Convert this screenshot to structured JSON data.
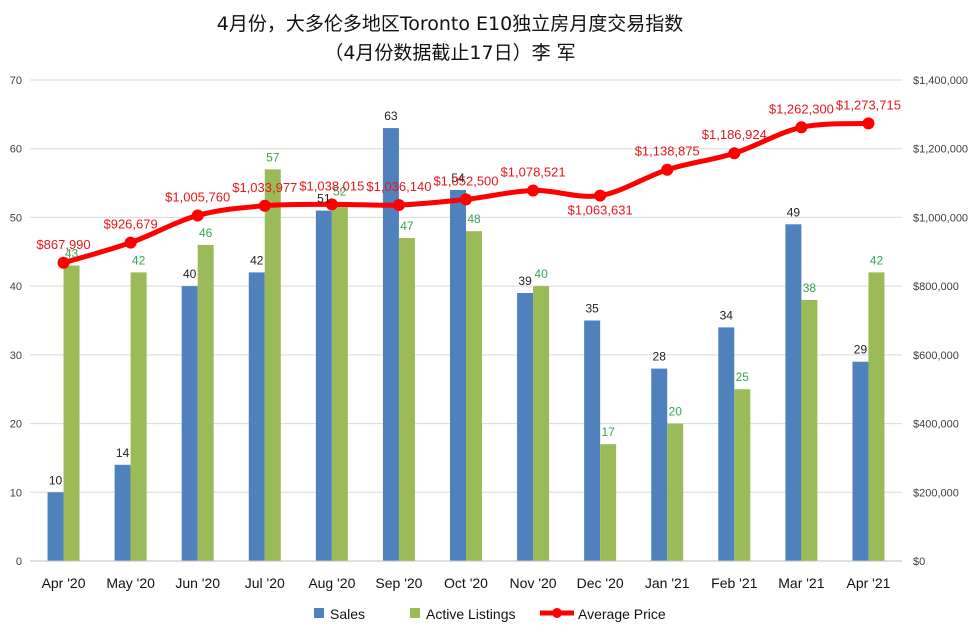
{
  "chart_data": {
    "type": "bar",
    "title": "4月份，大多伦多地区Toronto E10独立房月度交易指数",
    "subtitle": "（4月份数据截止17日）李 军",
    "categories": [
      "Apr '20",
      "May '20",
      "Jun '20",
      "Jul '20",
      "Aug '20",
      "Sep '20",
      "Oct '20",
      "Nov '20",
      "Dec '20",
      "Jan '21",
      "Feb '21",
      "Mar '21",
      "Apr '21"
    ],
    "series": [
      {
        "name": "Sales",
        "type": "bar",
        "axis": "left",
        "color": "#4f81bd",
        "values": [
          10,
          14,
          40,
          42,
          51,
          63,
          54,
          39,
          35,
          28,
          34,
          49,
          29
        ]
      },
      {
        "name": "Active Listings",
        "type": "bar",
        "axis": "left",
        "color": "#9bbb59",
        "values": [
          43,
          42,
          46,
          57,
          52,
          47,
          48,
          40,
          17,
          20,
          25,
          38,
          42
        ]
      },
      {
        "name": "Average Price",
        "type": "line",
        "axis": "right",
        "color": "#ff0000",
        "values": [
          867990,
          926679,
          1005760,
          1033977,
          1038015,
          1036140,
          1052500,
          1078521,
          1063631,
          1138875,
          1186924,
          1262300,
          1273715
        ],
        "labels": [
          "$867,990",
          "$926,679",
          "$1,005,760",
          "$1,033,977",
          "$1,038,015",
          "$1,036,140",
          "$1,052,500",
          "$1,078,521",
          "$1,063,631",
          "$1,138,875",
          "$1,186,924",
          "$1,262,300",
          "$1,273,715"
        ]
      }
    ],
    "ylim_left": [
      0,
      70
    ],
    "yticks_left": [
      "0",
      "10",
      "20",
      "30",
      "40",
      "50",
      "60",
      "70"
    ],
    "ylim_right": [
      0,
      1400000
    ],
    "yticks_right": [
      "$0",
      "$200,000",
      "$400,000",
      "$600,000",
      "$800,000",
      "$1,000,000",
      "$1,200,000",
      "$1,400,000"
    ],
    "grid": true,
    "legend": "bottom-center",
    "legend_entries": [
      "Sales",
      "Active Listings",
      "Average Price"
    ]
  }
}
